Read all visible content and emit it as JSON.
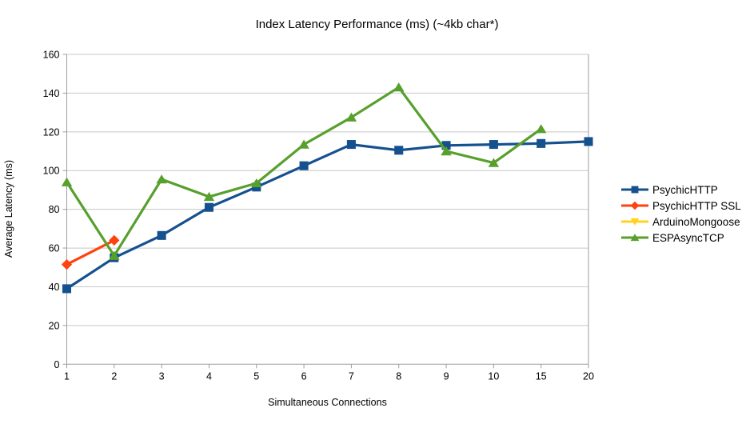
{
  "chart_data": {
    "type": "line",
    "title": "Index Latency Performance (ms) (~4kb char*)",
    "xlabel": "Simultaneous Connections",
    "ylabel": "Average Latency (ms)",
    "categories": [
      "1",
      "2",
      "3",
      "4",
      "5",
      "6",
      "7",
      "8",
      "9",
      "10",
      "15",
      "20"
    ],
    "ylim": [
      0,
      160
    ],
    "ytick_step": 20,
    "grid": true,
    "legend_position": "right",
    "colors": {
      "background": "#ffffff",
      "grid": "#c8c8c8",
      "axis": "#9e9e9e",
      "text": "#000000"
    },
    "series": [
      {
        "name": "PsychicHTTP",
        "color": "#15518f",
        "marker": "square",
        "values": [
          39,
          55,
          66.5,
          81,
          91.5,
          102.5,
          113.5,
          110.5,
          113,
          113.5,
          114,
          115
        ]
      },
      {
        "name": "PsychicHTTP SSL",
        "color": "#ff420e",
        "marker": "diamond",
        "values": [
          51.5,
          64,
          null,
          null,
          null,
          null,
          null,
          null,
          null,
          null,
          null,
          null
        ]
      },
      {
        "name": "ArduinoMongoose",
        "color": "#ffd320",
        "marker": "triangle-down",
        "values": [
          null,
          null,
          null,
          null,
          null,
          null,
          null,
          null,
          null,
          null,
          null,
          null
        ]
      },
      {
        "name": "ESPAsyncTCP",
        "color": "#57a02c",
        "marker": "triangle-up",
        "values": [
          94,
          56,
          95.5,
          86.5,
          93.5,
          113.5,
          127.5,
          143,
          110,
          104,
          121.5,
          null
        ]
      }
    ]
  }
}
